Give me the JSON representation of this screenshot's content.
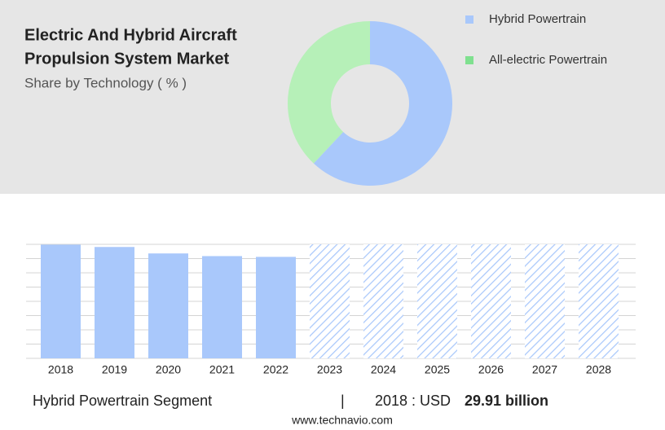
{
  "chart_data": [
    {
      "type": "pie",
      "title": [
        "Electric And Hybrid Aircraft",
        "Propulsion System Market"
      ],
      "subtitle": "Share by Technology ( % )",
      "categories": [
        "Hybrid Powertrain",
        "All-electric Powertrain"
      ],
      "values": [
        62,
        38
      ],
      "colors": [
        "#a9c8fb",
        "#b6f0b8"
      ],
      "legend_colors": [
        "#a9c8fb",
        "#7fe08f"
      ],
      "legend": "right"
    },
    {
      "type": "bar",
      "categories": [
        "2018",
        "2019",
        "2020",
        "2021",
        "2022",
        "2023",
        "2024",
        "2025",
        "2026",
        "2027",
        "2028"
      ],
      "values": [
        29.91,
        29.3,
        27.6,
        26.9,
        26.7,
        null,
        null,
        null,
        null,
        null,
        null
      ],
      "color": "#a9c8fb",
      "ylim": [
        0,
        30
      ],
      "grid": true
    }
  ],
  "footer": {
    "segment": "Hybrid Powertrain Segment",
    "separator": "|",
    "period": "2018 : USD",
    "value": "29.91 billion",
    "source": "www.technavio.com"
  }
}
